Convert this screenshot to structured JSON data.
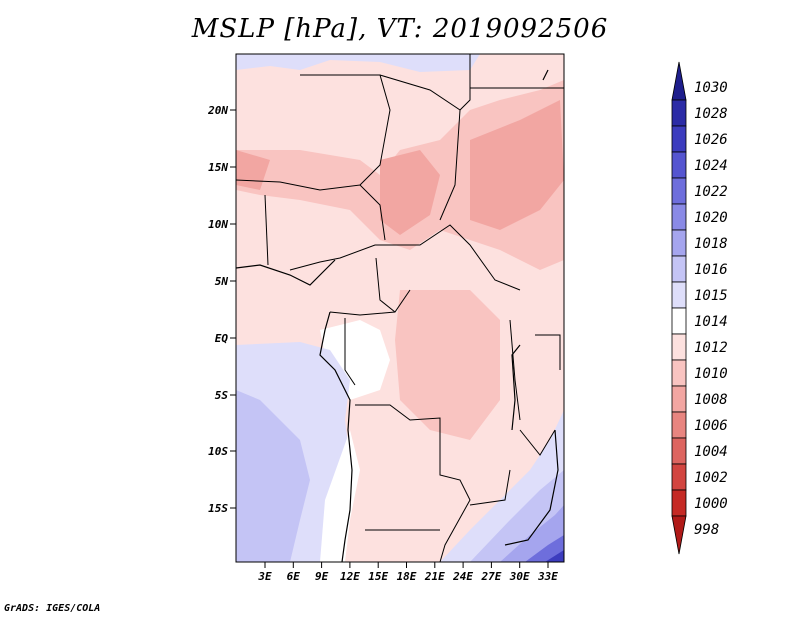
{
  "title": "MSLP [hPa], VT: 2019092506",
  "credit": "GrADS: IGES/COLA",
  "map": {
    "lat_ticks": [
      "20N",
      "15N",
      "10N",
      "5N",
      "EQ",
      "5S",
      "10S",
      "15S"
    ],
    "lon_ticks": [
      "3E",
      "6E",
      "9E",
      "12E",
      "15E",
      "18E",
      "21E",
      "24E",
      "27E",
      "30E",
      "33E"
    ],
    "field_color": "#f7b8b4"
  },
  "colorbar": {
    "levels": [
      "1030",
      "1028",
      "1026",
      "1024",
      "1022",
      "1020",
      "1018",
      "1016",
      "1015",
      "1014",
      "1012",
      "1010",
      "1008",
      "1006",
      "1004",
      "1002",
      "1000",
      "998"
    ],
    "colors": [
      "#1e1e8c",
      "#2b2ba6",
      "#3c3cbe",
      "#5555d0",
      "#6e6edc",
      "#8a8ae6",
      "#a5a5ee",
      "#c4c4f5",
      "#dedefa",
      "#ffffff",
      "#fde1df",
      "#f9c4c1",
      "#f2a6a2",
      "#e88580",
      "#dd6560",
      "#d24540",
      "#c52a25",
      "#b01a18"
    ]
  }
}
